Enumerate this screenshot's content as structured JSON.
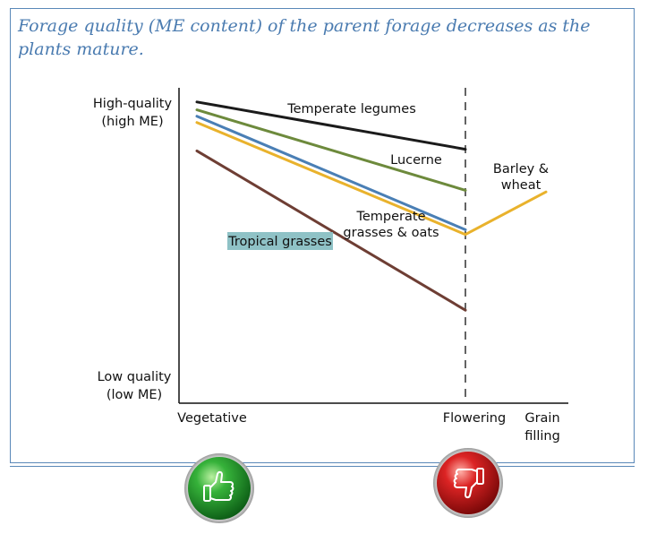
{
  "heading": "Forage quality (ME content) of the parent forage decreases as the plants mature.",
  "chart_data": {
    "type": "line",
    "title": "",
    "ylabel_top": [
      "High-quality",
      "(high ME)"
    ],
    "ylabel_bottom": [
      "Low quality",
      "(low ME)"
    ],
    "x_stages": [
      {
        "name": "vegetative",
        "lines": [
          "Vegetative"
        ],
        "x": 0
      },
      {
        "name": "flowering",
        "lines": [
          "Flowering"
        ],
        "x": 1
      },
      {
        "name": "grain-filling",
        "lines": [
          "Grain",
          "filling"
        ],
        "x": 1.3
      }
    ],
    "xlim": [
      0,
      1.3
    ],
    "ylim": [
      0,
      1
    ],
    "divider_x": 1,
    "series": [
      {
        "name": "Temperate legumes",
        "label_lines": [
          "Temperate legumes"
        ],
        "color": "#1b1b1b",
        "points": [
          [
            0,
            0.955
          ],
          [
            1,
            0.805
          ]
        ]
      },
      {
        "name": "Lucerne",
        "label_lines": [
          "Lucerne"
        ],
        "color": "#6d8a3c",
        "points": [
          [
            0,
            0.93
          ],
          [
            1,
            0.675
          ]
        ]
      },
      {
        "name": "Temperate grasses & oats",
        "label_lines": [
          "Temperate",
          "grasses & oats"
        ],
        "color": "#4a7fb5",
        "points": [
          [
            0,
            0.91
          ],
          [
            1,
            0.55
          ]
        ]
      },
      {
        "name": "Barley & wheat",
        "label_lines": [
          "Barley &",
          "wheat"
        ],
        "color": "#e9b22c",
        "points": [
          [
            0,
            0.89
          ],
          [
            1,
            0.535
          ],
          [
            1.3,
            0.67
          ]
        ]
      },
      {
        "name": "Tropical grasses",
        "label_lines": [
          "Tropical grasses"
        ],
        "color": "#6e3e34",
        "label_bg": "#8fc2c6",
        "points": [
          [
            0,
            0.8
          ],
          [
            1,
            0.295
          ]
        ]
      }
    ]
  },
  "icons": {
    "thumbs_up": {
      "name": "thumbs-up-icon",
      "color": "#2aa130"
    },
    "thumbs_down": {
      "name": "thumbs-down-icon",
      "color": "#d01e1e"
    }
  }
}
